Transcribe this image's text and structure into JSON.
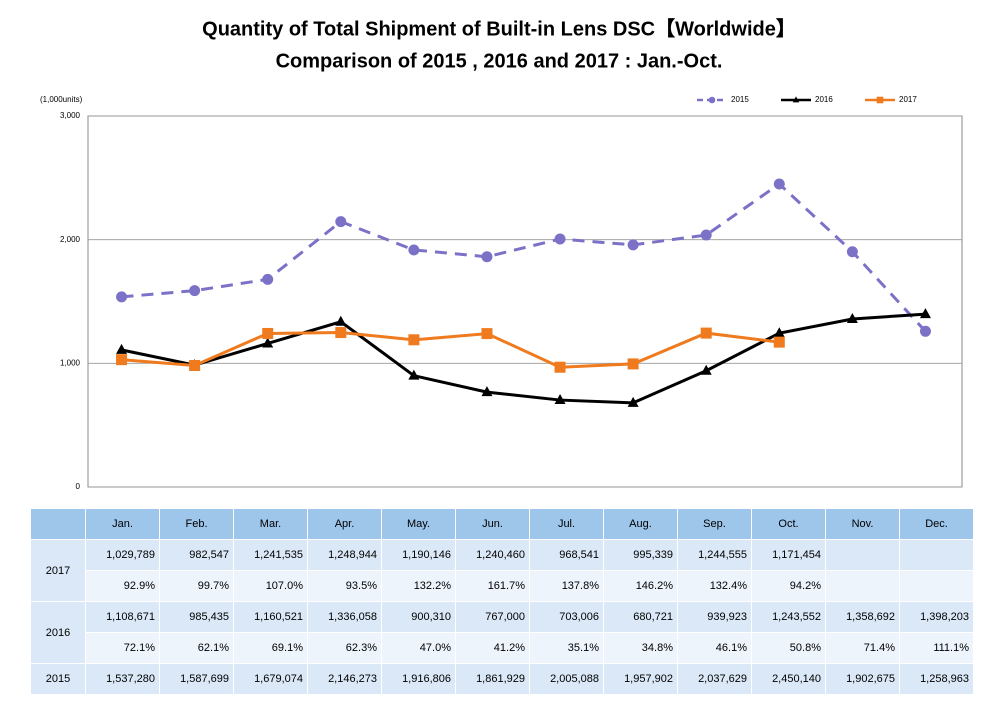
{
  "chart_data": {
    "type": "line",
    "title": "Quantity of Total Shipment of Built-in Lens DSC【Worldwide】",
    "subtitle": "Comparison of 2015 , 2016 and 2017 : Jan.-Oct.",
    "y_label": "(1,000units)",
    "categories": [
      "Jan.",
      "Feb.",
      "Mar.",
      "Apr.",
      "May.",
      "Jun.",
      "Jul.",
      "Aug.",
      "Sep.",
      "Oct.",
      "Nov.",
      "Dec."
    ],
    "ylim": [
      0,
      3000
    ],
    "yticks": [
      0,
      {
        "value": 1000,
        "label": "1,000"
      },
      {
        "value": 2000,
        "label": "2,000"
      },
      {
        "value": 3000,
        "label": "3,000"
      }
    ],
    "grid": true,
    "legend": "top-right",
    "series": [
      {
        "name": "2015",
        "color": "#7b72c8",
        "dash": true,
        "marker": "circle",
        "values": [
          1537.28,
          1587.699,
          1679.074,
          2146.273,
          1916.806,
          1861.929,
          2005.088,
          1957.902,
          2037.629,
          2450.14,
          1902.675,
          1258.963
        ]
      },
      {
        "name": "2016",
        "color": "#000000",
        "dash": false,
        "marker": "triangle",
        "values": [
          1108.671,
          985.435,
          1160.521,
          1336.058,
          900.31,
          767.0,
          703.006,
          680.721,
          939.923,
          1243.552,
          1358.692,
          1398.203
        ]
      },
      {
        "name": "2017",
        "color": "#f07a1e",
        "dash": false,
        "marker": "square",
        "values": [
          1029.789,
          982.547,
          1241.535,
          1248.944,
          1190.146,
          1240.46,
          968.541,
          995.339,
          1244.555,
          1171.454,
          null,
          null
        ]
      }
    ]
  },
  "table": {
    "rows": [
      {
        "year": "2017",
        "quantity": [
          "1,029,789",
          "982,547",
          "1,241,535",
          "1,248,944",
          "1,190,146",
          "1,240,460",
          "968,541",
          "995,339",
          "1,244,555",
          "1,171,454"
        ],
        "ratio": [
          "92.9%",
          "99.7%",
          "107.0%",
          "93.5%",
          "132.2%",
          "161.7%",
          "137.8%",
          "146.2%",
          "132.4%",
          "94.2%"
        ]
      },
      {
        "year": "2016",
        "quantity": [
          "1,108,671",
          "985,435",
          "1,160,521",
          "1,336,058",
          "900,310",
          "767,000",
          "703,006",
          "680,721",
          "939,923",
          "1,243,552",
          "1,358,692",
          "1,398,203"
        ],
        "ratio": [
          "72.1%",
          "62.1%",
          "69.1%",
          "62.3%",
          "47.0%",
          "41.2%",
          "35.1%",
          "34.8%",
          "46.1%",
          "50.8%",
          "71.4%",
          "111.1%"
        ]
      },
      {
        "year": "2015",
        "quantity": [
          "1,537,280",
          "1,587,699",
          "1,679,074",
          "2,146,273",
          "1,916,806",
          "1,861,929",
          "2,005,088",
          "1,957,902",
          "2,037,629",
          "2,450,140",
          "1,902,675",
          "1,258,963"
        ]
      }
    ]
  }
}
